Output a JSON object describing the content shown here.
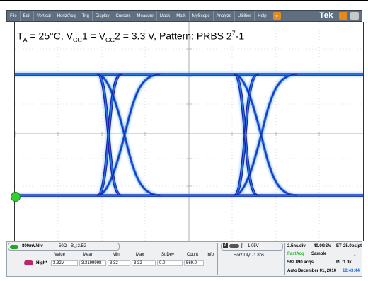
{
  "menu": {
    "items": [
      "File",
      "Edit",
      "Vertical",
      "Horiz/Acq",
      "Trig",
      "Display",
      "Cursors",
      "Measure",
      "Mask",
      "Math",
      "MyScope",
      "Analyze",
      "Utilities",
      "Help"
    ],
    "brand": "Tek"
  },
  "annotation": {
    "t_a": "T",
    "t_a_sub": "A",
    "part1": " = 25°C, V",
    "vcc1_sub": "CC",
    "part2": "1 = V",
    "vcc2_sub": "CC",
    "part3": "2 = 3.3 V, Pattern: PRBS 2",
    "exp": "7",
    "part4": "-1"
  },
  "channel": {
    "scale": "800mV/div",
    "impedance": "50Ω",
    "bw_prefix": "B",
    "bw_sub": "W",
    "bw_value": ":2.5G"
  },
  "trigger": {
    "source": "A",
    "level": "-1.05V",
    "horz_delay": "Horz Dly: -1.8ns"
  },
  "acquisition": {
    "timebase": "2.5ns/div",
    "sample_rate": "40.0GS/s",
    "et": "ET",
    "resolution": "25.0ps/pt",
    "mode": "FastAcq",
    "sample_label": "Sample",
    "acqs": "562 890 acqs",
    "record_length": "RL:1.0k",
    "trigger_mode": "Auto",
    "date": "December 01, 2010",
    "time": "10:43:44"
  },
  "measurements": {
    "headers": [
      "Value",
      "Mean",
      "Min",
      "Max",
      "St Dev",
      "Count",
      "Info"
    ],
    "rows": [
      {
        "label": "High*",
        "value": "3.32V",
        "mean": "3.3199998",
        "min": "3.32",
        "max": "3.32",
        "stdev": "0.0",
        "count": "569.0",
        "info": ""
      }
    ]
  },
  "colors": {
    "trace": "#2a5ad8",
    "trace_core": "#1c2fb0",
    "menu_bg": "#5f6f80",
    "channel_green": "#22a722",
    "meas_magenta": "#c0246b",
    "accent_orange": "#e58a1e"
  }
}
